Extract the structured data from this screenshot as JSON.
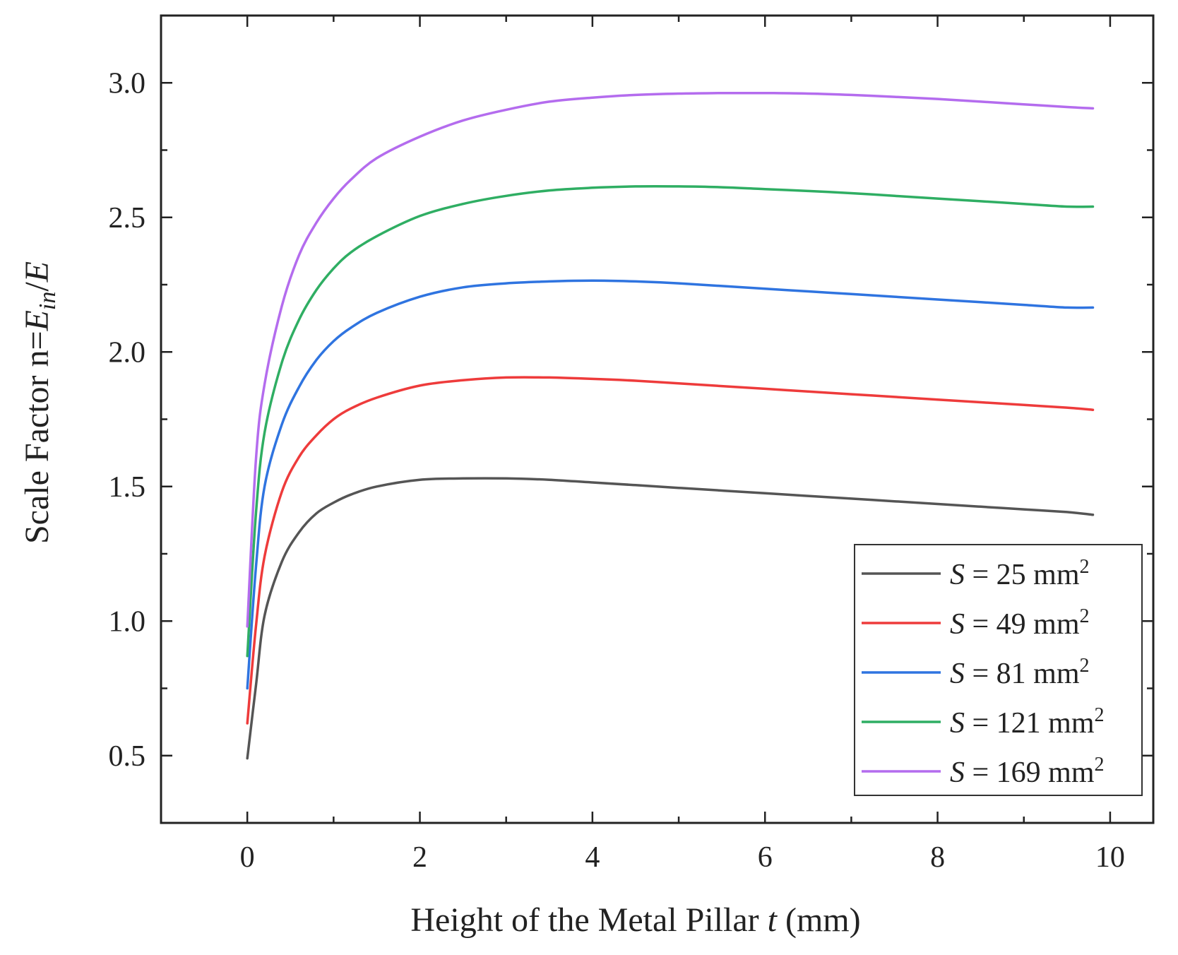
{
  "chart_data": {
    "type": "line",
    "title": "",
    "xlabel": {
      "prefix": "Height of the Metal Pillar ",
      "italic": "t",
      "suffix": " (mm)"
    },
    "ylabel": {
      "prefix": "Scale Factor n=",
      "E1": "E",
      "sub": "in",
      "slash": "/",
      "E2": "E"
    },
    "xlim": [
      -1,
      10.5
    ],
    "ylim": [
      0.25,
      3.25
    ],
    "xticks": [
      0,
      2,
      4,
      6,
      8,
      10
    ],
    "xtick_labels": [
      "0",
      "2",
      "4",
      "6",
      "8",
      "10"
    ],
    "yticks": [
      0.5,
      1.0,
      1.5,
      2.0,
      2.5,
      3.0
    ],
    "ytick_labels": [
      "0.5",
      "1.0",
      "1.5",
      "2.0",
      "2.5",
      "3.0"
    ],
    "x": [
      0,
      0.1,
      0.2,
      0.4,
      0.6,
      0.8,
      1.0,
      1.2,
      1.5,
      2.0,
      2.5,
      3.0,
      3.5,
      4.0,
      4.5,
      5.0,
      5.5,
      6.0,
      6.5,
      7.0,
      7.5,
      8.0,
      8.5,
      9.0,
      9.5,
      9.8
    ],
    "series": [
      {
        "name": "S = 25 mm",
        "label_italic": "S",
        "label_text": " = 25 mm",
        "label_sup": "2",
        "color": "#555555",
        "values": [
          0.49,
          0.76,
          1.02,
          1.22,
          1.33,
          1.4,
          1.44,
          1.47,
          1.5,
          1.525,
          1.53,
          1.53,
          1.525,
          1.515,
          1.505,
          1.495,
          1.485,
          1.475,
          1.465,
          1.455,
          1.445,
          1.435,
          1.425,
          1.415,
          1.405,
          1.395
        ]
      },
      {
        "name": "S = 49 mm",
        "label_italic": "S",
        "label_text": " = 49 mm",
        "label_sup": "2",
        "color": "#ee3b3b",
        "values": [
          0.62,
          0.98,
          1.24,
          1.48,
          1.61,
          1.69,
          1.75,
          1.79,
          1.83,
          1.875,
          1.895,
          1.905,
          1.905,
          1.9,
          1.893,
          1.883,
          1.873,
          1.863,
          1.853,
          1.843,
          1.833,
          1.823,
          1.813,
          1.803,
          1.793,
          1.785
        ]
      },
      {
        "name": "S = 81 mm",
        "label_italic": "S",
        "label_text": " = 81 mm",
        "label_sup": "2",
        "color": "#2f74e0",
        "values": [
          0.75,
          1.2,
          1.5,
          1.73,
          1.87,
          1.97,
          2.04,
          2.09,
          2.145,
          2.205,
          2.24,
          2.255,
          2.262,
          2.265,
          2.262,
          2.255,
          2.245,
          2.235,
          2.225,
          2.215,
          2.205,
          2.195,
          2.185,
          2.175,
          2.165,
          2.165
        ]
      },
      {
        "name": "S = 121 mm",
        "label_italic": "S",
        "label_text": " = 121 mm",
        "label_sup": "2",
        "color": "#2fae63",
        "values": [
          0.87,
          1.4,
          1.7,
          1.96,
          2.12,
          2.23,
          2.31,
          2.37,
          2.43,
          2.505,
          2.55,
          2.58,
          2.6,
          2.61,
          2.615,
          2.615,
          2.612,
          2.605,
          2.598,
          2.59,
          2.58,
          2.57,
          2.56,
          2.55,
          2.54,
          2.54
        ]
      },
      {
        "name": "S = 169 mm",
        "label_italic": "S",
        "label_text": " = 169 mm",
        "label_sup": "2",
        "color": "#b46cee",
        "values": [
          0.98,
          1.6,
          1.88,
          2.17,
          2.36,
          2.48,
          2.57,
          2.64,
          2.72,
          2.8,
          2.86,
          2.9,
          2.93,
          2.945,
          2.955,
          2.96,
          2.962,
          2.962,
          2.96,
          2.955,
          2.948,
          2.94,
          2.93,
          2.92,
          2.91,
          2.905
        ]
      }
    ],
    "legend": "lower-right"
  }
}
